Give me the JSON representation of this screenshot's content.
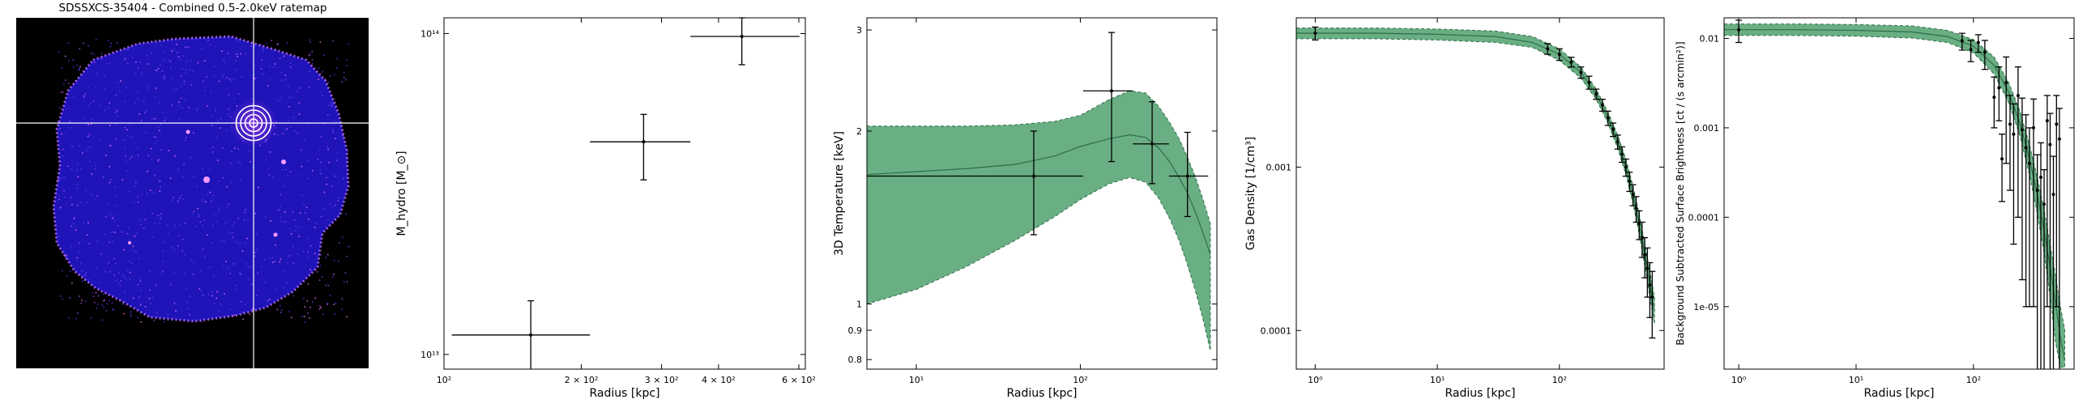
{
  "colors": {
    "band_fill": "#6aae84",
    "band_edge": "#2f6e47",
    "model_line": "#2f6e47",
    "error_bars": "#000000",
    "image_background": "#000000",
    "crosshair": "#ffffff"
  },
  "image_panel": {
    "title": "SDSSXCS-35404 - Combined 0.5-2.0keV ratemap",
    "crosshair": true,
    "marker_rings": 4
  },
  "chart_data": [
    {
      "type": "scatter",
      "title": "",
      "xlabel": "Radius [kpc]",
      "ylabel": "M_hydro [M_⊙]",
      "xscale": "log",
      "yscale": "log",
      "xlim": [
        100,
        620
      ],
      "ylim": [
        9000000000000.0,
        112000000000000.0
      ],
      "xticks": [
        {
          "value": 100,
          "label": "10²"
        },
        {
          "value": 200,
          "label": "2 × 10²"
        },
        {
          "value": 300,
          "label": "3 × 10²"
        },
        {
          "value": 400,
          "label": "4 × 10²"
        },
        {
          "value": 600,
          "label": "6 × 10²"
        }
      ],
      "yticks": [
        {
          "value": 10000000000000.0,
          "label": "10¹³"
        },
        {
          "value": 100000000000000.0,
          "label": "10¹⁴"
        }
      ],
      "points": [
        {
          "x": 155,
          "xerr": [
            51,
            54
          ],
          "y": 11500000000000.0,
          "yerr": [
            3000000000000.0,
            3200000000000.0
          ]
        },
        {
          "x": 274,
          "xerr": [
            65,
            73
          ],
          "y": 46000000000000.0,
          "yerr": [
            11000000000000.0,
            10000000000000.0
          ]
        },
        {
          "x": 450,
          "xerr": [
            103,
            152
          ],
          "y": 98000000000000.0,
          "yerr": [
            18000000000000.0,
            18000000000000.0
          ]
        }
      ]
    },
    {
      "type": "line",
      "title": "",
      "xlabel": "Radius [kpc]",
      "ylabel": "3D Temperature [keV]",
      "xscale": "log",
      "yscale": "log",
      "xlim": [
        5,
        680
      ],
      "ylim": [
        0.77,
        3.15
      ],
      "xticks": [
        {
          "value": 10,
          "label": "10¹"
        },
        {
          "value": 100,
          "label": "10²"
        }
      ],
      "yticks": [
        {
          "value": 0.8,
          "label": "0.8"
        },
        {
          "value": 0.9,
          "label": "0.9"
        },
        {
          "value": 1,
          "label": "1"
        },
        {
          "value": 2,
          "label": "2"
        },
        {
          "value": 3,
          "label": "3"
        }
      ],
      "model": {
        "x": [
          5,
          10,
          20,
          40,
          70,
          100,
          150,
          200,
          250,
          300,
          350,
          400,
          450,
          500,
          560,
          620
        ],
        "y": [
          1.68,
          1.7,
          1.72,
          1.75,
          1.81,
          1.88,
          1.94,
          1.97,
          1.95,
          1.87,
          1.77,
          1.66,
          1.56,
          1.45,
          1.33,
          1.22
        ],
        "lower": [
          1.0,
          1.06,
          1.16,
          1.29,
          1.42,
          1.52,
          1.62,
          1.66,
          1.63,
          1.53,
          1.41,
          1.29,
          1.17,
          1.06,
          0.94,
          0.83
        ],
        "upper": [
          2.04,
          2.04,
          2.04,
          2.05,
          2.08,
          2.13,
          2.27,
          2.35,
          2.33,
          2.21,
          2.07,
          1.94,
          1.8,
          1.67,
          1.52,
          1.38
        ]
      },
      "points": [
        {
          "x": 52,
          "xerr": [
            47,
            52
          ],
          "y": 1.67,
          "yerr": [
            0.35,
            0.33
          ]
        },
        {
          "x": 155,
          "xerr": [
            51,
            54
          ],
          "y": 2.35,
          "yerr": [
            0.58,
            0.62
          ]
        },
        {
          "x": 274,
          "xerr": [
            65,
            73
          ],
          "y": 1.9,
          "yerr": [
            0.28,
            0.35
          ]
        },
        {
          "x": 450,
          "xerr": [
            103,
            152
          ],
          "y": 1.67,
          "yerr": [
            0.25,
            0.32
          ]
        }
      ]
    },
    {
      "type": "line",
      "title": "",
      "xlabel": "Radius [kpc]",
      "ylabel": "Gas Density [1/cm³]",
      "xscale": "log",
      "yscale": "log",
      "xlim": [
        0.7,
        720
      ],
      "ylim": [
        5.8e-05,
        0.0082
      ],
      "xticks": [
        {
          "value": 1,
          "label": "10⁰"
        },
        {
          "value": 10,
          "label": "10¹"
        },
        {
          "value": 100,
          "label": "10²"
        }
      ],
      "yticks": [
        {
          "value": 0.0001,
          "label": "0.0001"
        },
        {
          "value": 0.001,
          "label": "0.001"
        }
      ],
      "model": {
        "x": [
          0.7,
          1,
          3,
          10,
          30,
          60,
          100,
          150,
          200,
          250,
          300,
          350,
          400,
          450,
          500,
          550,
          600
        ],
        "y": [
          0.0066,
          0.0066,
          0.0066,
          0.0065,
          0.0063,
          0.0058,
          0.0049,
          0.0038,
          0.0028,
          0.002,
          0.00143,
          0.001,
          0.00068,
          0.00045,
          0.00029,
          0.00019,
          0.00013
        ],
        "lower": [
          0.0061,
          0.0061,
          0.0061,
          0.006,
          0.0058,
          0.0054,
          0.0045,
          0.0035,
          0.0026,
          0.00185,
          0.0013,
          0.0009,
          0.0006,
          0.00039,
          0.00025,
          0.00016,
          0.00011
        ],
        "upper": [
          0.0071,
          0.0071,
          0.0071,
          0.007,
          0.0068,
          0.0063,
          0.0053,
          0.0041,
          0.003,
          0.00216,
          0.00157,
          0.00112,
          0.00077,
          0.00052,
          0.00034,
          0.00023,
          0.00016
        ]
      },
      "points": [
        {
          "x": 1,
          "y": 0.0066,
          "yerr": 0.0006
        },
        {
          "x": 80,
          "y": 0.0053,
          "yerr": 0.0004
        },
        {
          "x": 100,
          "y": 0.0049,
          "yerr": 0.0004
        },
        {
          "x": 125,
          "y": 0.0044,
          "yerr": 0.0003
        },
        {
          "x": 150,
          "y": 0.0038,
          "yerr": 0.0003
        },
        {
          "x": 175,
          "y": 0.0033,
          "yerr": 0.0003
        },
        {
          "x": 200,
          "y": 0.0028,
          "yerr": 0.0002
        },
        {
          "x": 225,
          "y": 0.0024,
          "yerr": 0.0002
        },
        {
          "x": 250,
          "y": 0.002,
          "yerr": 0.0002
        },
        {
          "x": 275,
          "y": 0.0017,
          "yerr": 0.00016
        },
        {
          "x": 300,
          "y": 0.00143,
          "yerr": 0.00014
        },
        {
          "x": 325,
          "y": 0.0012,
          "yerr": 0.00013
        },
        {
          "x": 350,
          "y": 0.001,
          "yerr": 0.00012
        },
        {
          "x": 375,
          "y": 0.00082,
          "yerr": 0.00011
        },
        {
          "x": 400,
          "y": 0.00068,
          "yerr": 0.0001
        },
        {
          "x": 425,
          "y": 0.00056,
          "yerr": 0.0001
        },
        {
          "x": 450,
          "y": 0.00045,
          "yerr": 9e-05
        },
        {
          "x": 475,
          "y": 0.00037,
          "yerr": 9e-05
        },
        {
          "x": 500,
          "y": 0.00029,
          "yerr": 8e-05
        },
        {
          "x": 525,
          "y": 0.00024,
          "yerr": 8e-05
        },
        {
          "x": 550,
          "y": 0.00019,
          "yerr": 7e-05
        },
        {
          "x": 575,
          "y": 0.00016,
          "yerr": 7e-05
        }
      ]
    },
    {
      "type": "line",
      "title": "",
      "xlabel": "Radius [kpc]",
      "ylabel": "Background Subtracted Surface Brightness [ct / (s arcmin²)]",
      "xscale": "log",
      "yscale": "log",
      "xlim": [
        0.75,
        720
      ],
      "ylim": [
        2e-06,
        0.017
      ],
      "xticks": [
        {
          "value": 1,
          "label": "10⁰"
        },
        {
          "value": 10,
          "label": "10¹"
        },
        {
          "value": 100,
          "label": "10²"
        }
      ],
      "yticks": [
        {
          "value": 1e-05,
          "label": "1e-05"
        },
        {
          "value": 0.0001,
          "label": "0.0001"
        },
        {
          "value": 0.001,
          "label": "0.001"
        },
        {
          "value": 0.01,
          "label": "0.01"
        }
      ],
      "model": {
        "x": [
          0.75,
          1,
          3,
          10,
          30,
          60,
          100,
          150,
          200,
          250,
          300,
          350,
          400,
          450,
          500,
          550,
          600
        ],
        "y": [
          0.0125,
          0.0125,
          0.0125,
          0.0123,
          0.0118,
          0.0105,
          0.0082,
          0.005,
          0.0025,
          0.0011,
          0.00045,
          0.00018,
          7e-05,
          2.8e-05,
          1.1e-05,
          4.5e-06,
          2.5e-06
        ],
        "lower": [
          0.0108,
          0.0108,
          0.0108,
          0.0106,
          0.0101,
          0.009,
          0.0069,
          0.004,
          0.0019,
          0.0008,
          0.0003,
          0.00011,
          4e-05,
          1.3e-05,
          4e-06,
          2.1e-06,
          2.1e-06
        ],
        "upper": [
          0.0145,
          0.0145,
          0.0145,
          0.0143,
          0.0138,
          0.0123,
          0.0097,
          0.0062,
          0.0032,
          0.0015,
          0.00065,
          0.00028,
          0.00012,
          5e-05,
          2.2e-05,
          1e-05,
          5.5e-06
        ]
      },
      "points": [
        {
          "x": 1,
          "y": 0.0125,
          "yerr": [
            0.0035,
            0.0035
          ]
        },
        {
          "x": 80,
          "y": 0.0094,
          "yerr": [
            0.002,
            0.002
          ]
        },
        {
          "x": 95,
          "y": 0.0075,
          "yerr": [
            0.002,
            0.002
          ]
        },
        {
          "x": 110,
          "y": 0.009,
          "yerr": [
            0.002,
            0.002
          ]
        },
        {
          "x": 125,
          "y": 0.007,
          "yerr": [
            0.0025,
            0.0025
          ]
        },
        {
          "x": 150,
          "y": 0.0022,
          "yerr": [
            0.0012,
            0.0015
          ]
        },
        {
          "x": 165,
          "y": 0.0028,
          "yerr": [
            0.0016,
            0.002
          ]
        },
        {
          "x": 175,
          "y": 0.00045,
          "yerr": [
            0.0003,
            0.0004
          ]
        },
        {
          "x": 190,
          "y": 0.0032,
          "yerr": [
            0.0028,
            0.003
          ]
        },
        {
          "x": 205,
          "y": 0.0011,
          "yerr": [
            0.0009,
            0.0012
          ]
        },
        {
          "x": 220,
          "y": 0.00085,
          "yerr": [
            0.0008,
            0.001
          ]
        },
        {
          "x": 240,
          "y": 0.0023,
          "yerr": [
            0.0022,
            0.0025
          ]
        },
        {
          "x": 260,
          "y": 0.00095,
          "yerr": [
            0.00093,
            0.0012
          ]
        },
        {
          "x": 280,
          "y": 0.0006,
          "yerr": [
            0.00059,
            0.0008
          ]
        },
        {
          "x": 300,
          "y": 0.0004,
          "yerr": [
            0.00039,
            0.0006
          ]
        },
        {
          "x": 325,
          "y": 0.001,
          "yerr": [
            0.00099,
            0.0011
          ]
        },
        {
          "x": 350,
          "y": 0.0002,
          "yerr": [
            0.000199,
            0.0003
          ]
        },
        {
          "x": 375,
          "y": 0.00028,
          "yerr": [
            0.000279,
            0.0004
          ]
        },
        {
          "x": 400,
          "y": 0.00014,
          "yerr": [
            0.000139,
            0.0002
          ]
        },
        {
          "x": 425,
          "y": 0.0012,
          "yerr": [
            0.00119,
            0.0011
          ]
        },
        {
          "x": 450,
          "y": 0.00065,
          "yerr": [
            0.000649,
            0.0008
          ]
        },
        {
          "x": 480,
          "y": 0.00018,
          "yerr": [
            0.000179,
            0.0003
          ]
        },
        {
          "x": 510,
          "y": 0.0011,
          "yerr": [
            0.00109,
            0.0012
          ]
        },
        {
          "x": 540,
          "y": 0.00075,
          "yerr": [
            0.000749,
            0.0009
          ]
        }
      ]
    }
  ]
}
